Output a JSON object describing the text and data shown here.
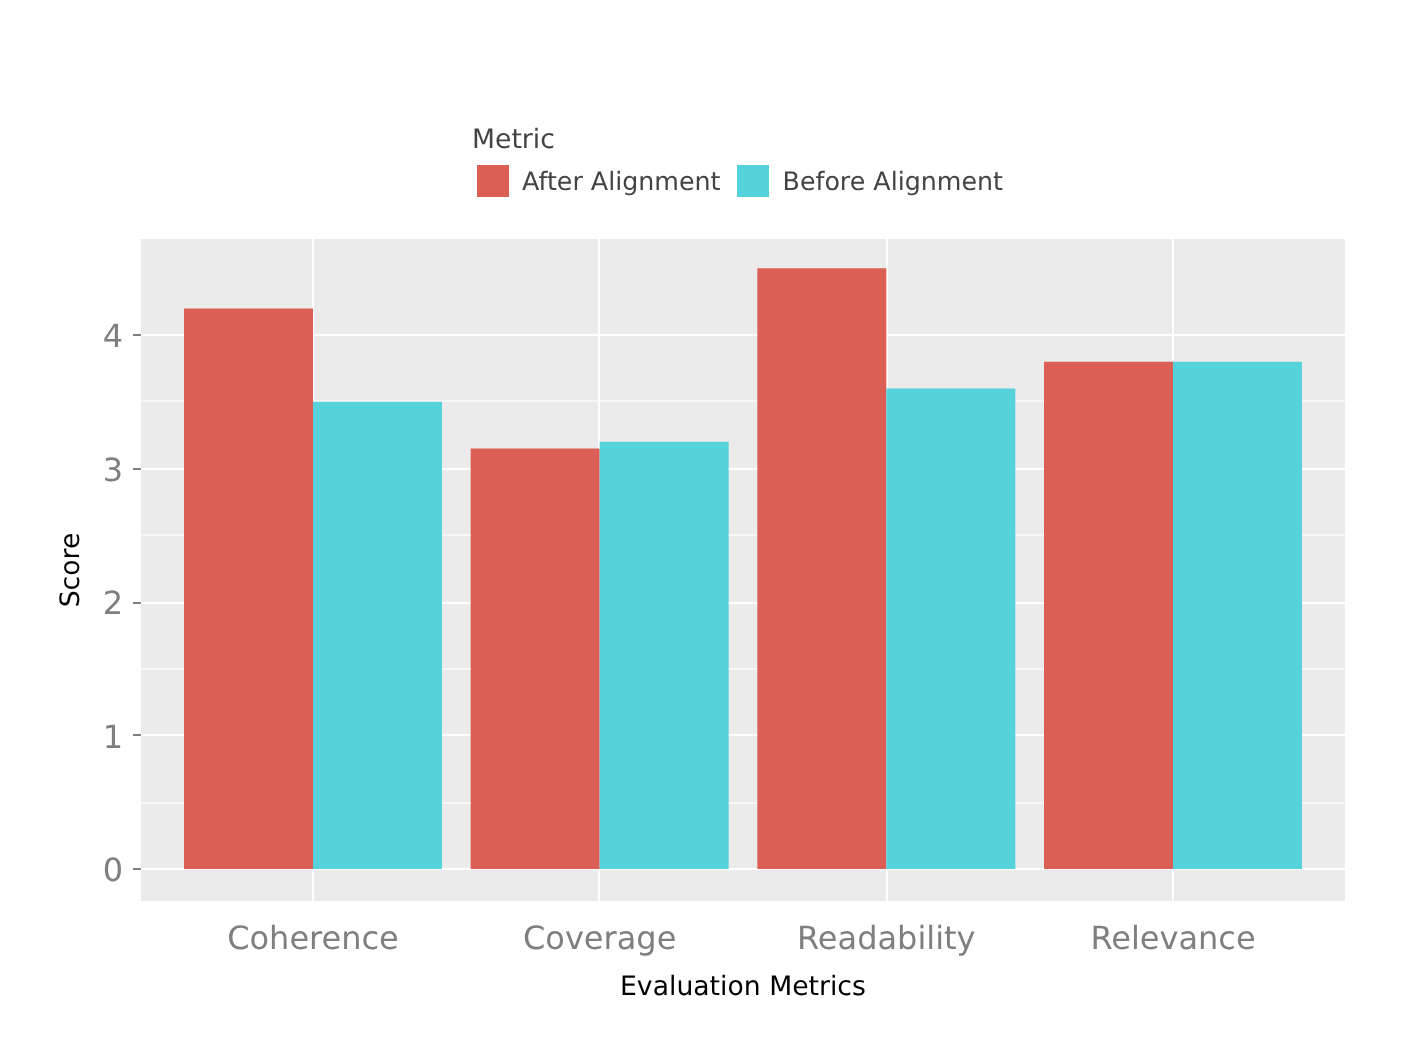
{
  "chart_data": {
    "type": "bar",
    "xlabel": "Evaluation Metrics",
    "ylabel": "Score",
    "legend_title": "Metric",
    "legend": "top",
    "categories": [
      "Coherence",
      "Coverage",
      "Readability",
      "Relevance"
    ],
    "series": [
      {
        "name": "After Alignment",
        "color": "#dc5f56",
        "values": [
          4.2,
          3.15,
          4.5,
          3.8
        ]
      },
      {
        "name": "Before Alignment",
        "color": "#56d2db",
        "values": [
          3.5,
          3.2,
          3.6,
          3.8
        ]
      }
    ],
    "ylim": [
      -0.24,
      4.72
    ],
    "yticks": [
      0,
      1,
      2,
      3,
      4
    ],
    "grid": true
  }
}
